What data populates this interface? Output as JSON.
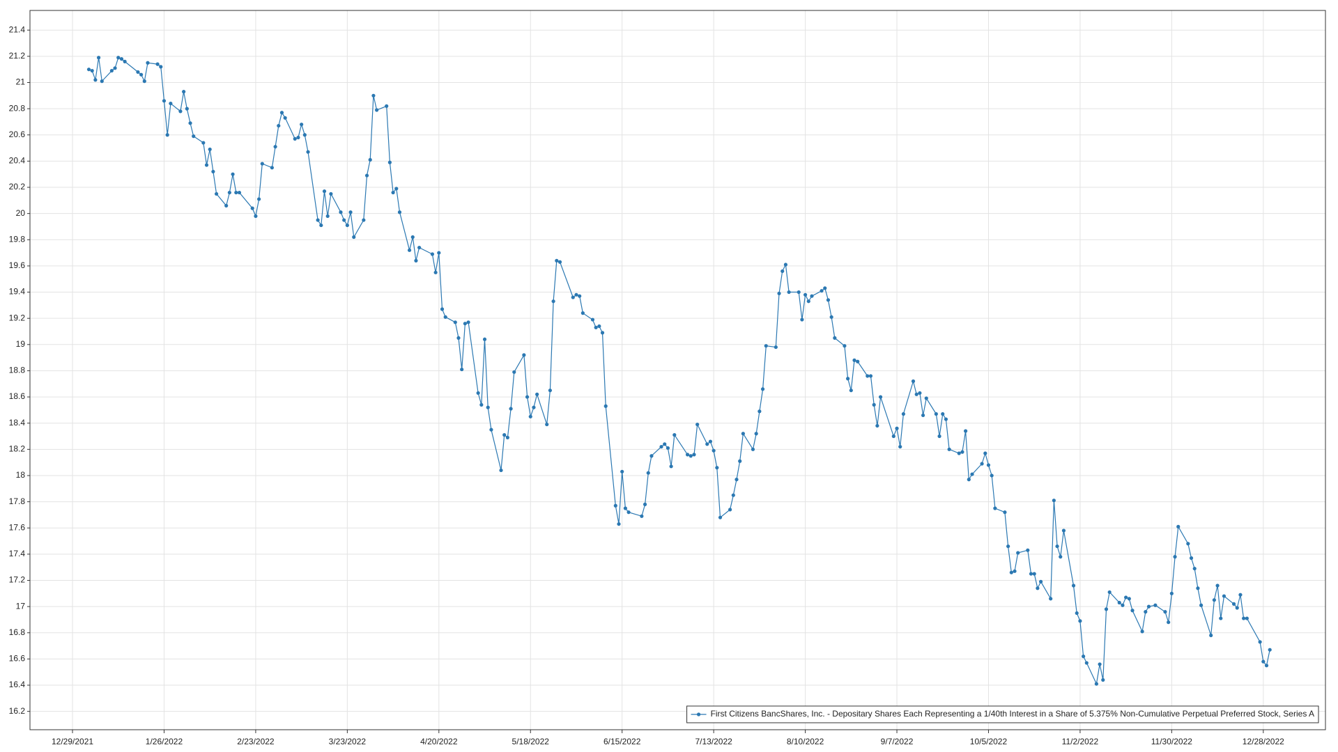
{
  "chart_data": {
    "type": "line",
    "x": [
      "1/3/2022",
      "1/4/2022",
      "1/5/2022",
      "1/6/2022",
      "1/7/2022",
      "1/10/2022",
      "1/11/2022",
      "1/12/2022",
      "1/13/2022",
      "1/14/2022",
      "1/18/2022",
      "1/19/2022",
      "1/20/2022",
      "1/21/2022",
      "1/24/2022",
      "1/25/2022",
      "1/26/2022",
      "1/27/2022",
      "1/28/2022",
      "1/31/2022",
      "2/1/2022",
      "2/2/2022",
      "2/3/2022",
      "2/4/2022",
      "2/7/2022",
      "2/8/2022",
      "2/9/2022",
      "2/10/2022",
      "2/11/2022",
      "2/14/2022",
      "2/15/2022",
      "2/16/2022",
      "2/17/2022",
      "2/18/2022",
      "2/22/2022",
      "2/23/2022",
      "2/24/2022",
      "2/25/2022",
      "2/28/2022",
      "3/1/2022",
      "3/2/2022",
      "3/3/2022",
      "3/4/2022",
      "3/7/2022",
      "3/8/2022",
      "3/9/2022",
      "3/10/2022",
      "3/11/2022",
      "3/14/2022",
      "3/15/2022",
      "3/16/2022",
      "3/17/2022",
      "3/18/2022",
      "3/21/2022",
      "3/22/2022",
      "3/23/2022",
      "3/24/2022",
      "3/25/2022",
      "3/28/2022",
      "3/29/2022",
      "3/30/2022",
      "3/31/2022",
      "4/1/2022",
      "4/4/2022",
      "4/5/2022",
      "4/6/2022",
      "4/7/2022",
      "4/8/2022",
      "4/11/2022",
      "4/12/2022",
      "4/13/2022",
      "4/14/2022",
      "4/18/2022",
      "4/19/2022",
      "4/20/2022",
      "4/21/2022",
      "4/22/2022",
      "4/25/2022",
      "4/26/2022",
      "4/27/2022",
      "4/28/2022",
      "4/29/2022",
      "5/2/2022",
      "5/3/2022",
      "5/4/2022",
      "5/5/2022",
      "5/6/2022",
      "5/9/2022",
      "5/10/2022",
      "5/11/2022",
      "5/12/2022",
      "5/13/2022",
      "5/16/2022",
      "5/17/2022",
      "5/18/2022",
      "5/19/2022",
      "5/20/2022",
      "5/23/2022",
      "5/24/2022",
      "5/25/2022",
      "5/26/2022",
      "5/27/2022",
      "5/31/2022",
      "6/1/2022",
      "6/2/2022",
      "6/3/2022",
      "6/6/2022",
      "6/7/2022",
      "6/8/2022",
      "6/9/2022",
      "6/10/2022",
      "6/13/2022",
      "6/14/2022",
      "6/15/2022",
      "6/16/2022",
      "6/17/2022",
      "6/21/2022",
      "6/22/2022",
      "6/23/2022",
      "6/24/2022",
      "6/27/2022",
      "6/28/2022",
      "6/29/2022",
      "6/30/2022",
      "7/1/2022",
      "7/5/2022",
      "7/6/2022",
      "7/7/2022",
      "7/8/2022",
      "7/11/2022",
      "7/12/2022",
      "7/13/2022",
      "7/14/2022",
      "7/15/2022",
      "7/18/2022",
      "7/19/2022",
      "7/20/2022",
      "7/21/2022",
      "7/22/2022",
      "7/25/2022",
      "7/26/2022",
      "7/27/2022",
      "7/28/2022",
      "7/29/2022",
      "8/1/2022",
      "8/2/2022",
      "8/3/2022",
      "8/4/2022",
      "8/5/2022",
      "8/8/2022",
      "8/9/2022",
      "8/10/2022",
      "8/11/2022",
      "8/12/2022",
      "8/15/2022",
      "8/16/2022",
      "8/17/2022",
      "8/18/2022",
      "8/19/2022",
      "8/22/2022",
      "8/23/2022",
      "8/24/2022",
      "8/25/2022",
      "8/26/2022",
      "8/29/2022",
      "8/30/2022",
      "8/31/2022",
      "9/1/2022",
      "9/2/2022",
      "9/6/2022",
      "9/7/2022",
      "9/8/2022",
      "9/9/2022",
      "9/12/2022",
      "9/13/2022",
      "9/14/2022",
      "9/15/2022",
      "9/16/2022",
      "9/19/2022",
      "9/20/2022",
      "9/21/2022",
      "9/22/2022",
      "9/23/2022",
      "9/26/2022",
      "9/27/2022",
      "9/28/2022",
      "9/29/2022",
      "9/30/2022",
      "10/3/2022",
      "10/4/2022",
      "10/5/2022",
      "10/6/2022",
      "10/7/2022",
      "10/10/2022",
      "10/11/2022",
      "10/12/2022",
      "10/13/2022",
      "10/14/2022",
      "10/17/2022",
      "10/18/2022",
      "10/19/2022",
      "10/20/2022",
      "10/21/2022",
      "10/24/2022",
      "10/25/2022",
      "10/26/2022",
      "10/27/2022",
      "10/28/2022",
      "10/31/2022",
      "11/1/2022",
      "11/2/2022",
      "11/3/2022",
      "11/4/2022",
      "11/7/2022",
      "11/8/2022",
      "11/9/2022",
      "11/10/2022",
      "11/11/2022",
      "11/14/2022",
      "11/15/2022",
      "11/16/2022",
      "11/17/2022",
      "11/18/2022",
      "11/21/2022",
      "11/22/2022",
      "11/23/2022",
      "11/25/2022",
      "11/28/2022",
      "11/29/2022",
      "11/30/2022",
      "12/1/2022",
      "12/2/2022",
      "12/5/2022",
      "12/6/2022",
      "12/7/2022",
      "12/8/2022",
      "12/9/2022",
      "12/12/2022",
      "12/13/2022",
      "12/14/2022",
      "12/15/2022",
      "12/16/2022",
      "12/19/2022",
      "12/20/2022",
      "12/21/2022",
      "12/22/2022",
      "12/23/2022",
      "12/27/2022",
      "12/28/2022",
      "12/29/2022",
      "12/30/2022"
    ],
    "series": [
      {
        "name": "First Citizens BancShares, Inc. - Depositary Shares Each Representing a 1/40th Interest in a Share of 5.375% Non-Cumulative Perpetual Preferred Stock, Series A",
        "color": "#2b78b2",
        "values": [
          21.1,
          21.09,
          21.02,
          21.19,
          21.01,
          21.09,
          21.11,
          21.19,
          21.18,
          21.16,
          21.08,
          21.06,
          21.01,
          21.15,
          21.14,
          21.12,
          20.86,
          20.6,
          20.84,
          20.78,
          20.93,
          20.8,
          20.69,
          20.59,
          20.54,
          20.37,
          20.49,
          20.32,
          20.15,
          20.06,
          20.16,
          20.3,
          20.16,
          20.16,
          20.04,
          19.98,
          20.11,
          20.38,
          20.35,
          20.51,
          20.67,
          20.77,
          20.73,
          20.57,
          20.58,
          20.68,
          20.6,
          20.47,
          19.95,
          19.91,
          20.17,
          19.98,
          20.15,
          20.01,
          19.95,
          19.91,
          20.01,
          19.82,
          19.95,
          20.29,
          20.41,
          20.9,
          20.79,
          20.82,
          20.39,
          20.16,
          20.19,
          20.01,
          19.72,
          19.82,
          19.64,
          19.74,
          19.69,
          19.55,
          19.7,
          19.27,
          19.21,
          19.17,
          19.05,
          18.81,
          19.16,
          19.17,
          18.63,
          18.54,
          19.04,
          18.52,
          18.35,
          18.04,
          18.31,
          18.29,
          18.51,
          18.79,
          18.92,
          18.6,
          18.45,
          18.52,
          18.62,
          18.39,
          18.65,
          19.33,
          19.64,
          19.63,
          19.36,
          19.38,
          19.37,
          19.24,
          19.19,
          19.13,
          19.14,
          19.09,
          18.53,
          17.77,
          17.63,
          18.03,
          17.75,
          17.72,
          17.69,
          17.78,
          18.02,
          18.15,
          18.22,
          18.24,
          18.21,
          18.07,
          18.31,
          18.16,
          18.15,
          18.16,
          18.39,
          18.24,
          18.26,
          18.19,
          18.06,
          17.68,
          17.74,
          17.85,
          17.97,
          18.11,
          18.32,
          18.2,
          18.32,
          18.49,
          18.66,
          18.99,
          18.98,
          19.39,
          19.56,
          19.61,
          19.4,
          19.4,
          19.19,
          19.38,
          19.33,
          19.37,
          19.41,
          19.43,
          19.34,
          19.21,
          19.05,
          18.99,
          18.74,
          18.65,
          18.88,
          18.87,
          18.76,
          18.76,
          18.54,
          18.38,
          18.6,
          18.3,
          18.36,
          18.22,
          18.47,
          18.72,
          18.62,
          18.63,
          18.46,
          18.59,
          18.47,
          18.3,
          18.47,
          18.43,
          18.2,
          18.17,
          18.18,
          18.34,
          17.97,
          18.01,
          18.09,
          18.17,
          18.08,
          18.0,
          17.75,
          17.72,
          17.46,
          17.26,
          17.27,
          17.41,
          17.43,
          17.25,
          17.25,
          17.14,
          17.19,
          17.06,
          17.81,
          17.46,
          17.38,
          17.58,
          17.16,
          16.95,
          16.89,
          16.62,
          16.57,
          16.41,
          16.56,
          16.44,
          16.98,
          17.11,
          17.03,
          17.01,
          17.07,
          17.06,
          16.97,
          16.81,
          16.96,
          17.0,
          17.01,
          16.96,
          16.88,
          17.1,
          17.38,
          17.61,
          17.48,
          17.37,
          17.29,
          17.14,
          17.01,
          16.78,
          17.05,
          17.16,
          16.91,
          17.08,
          17.02,
          16.99,
          17.09,
          16.91,
          16.91,
          16.73,
          16.58,
          16.55,
          16.67
        ]
      }
    ],
    "xlim": [
      "12/16/2021",
      "1/16/2023"
    ],
    "xticks": [
      "12/29/2021",
      "1/26/2022",
      "2/23/2022",
      "3/23/2022",
      "4/20/2022",
      "5/18/2022",
      "6/15/2022",
      "7/13/2022",
      "8/10/2022",
      "9/7/2022",
      "10/5/2022",
      "11/2/2022",
      "11/30/2022",
      "12/28/2022"
    ],
    "ylim": [
      16.06,
      21.55
    ],
    "yticks": [
      16.2,
      16.4,
      16.6,
      16.8,
      17,
      17.2,
      17.4,
      17.6,
      17.8,
      18,
      18.2,
      18.4,
      18.6,
      18.8,
      19,
      19.2,
      19.4,
      19.6,
      19.8,
      20,
      20.2,
      20.4,
      20.6,
      20.8,
      21,
      21.2,
      21.4
    ],
    "grid": true,
    "legend": "lower right"
  }
}
